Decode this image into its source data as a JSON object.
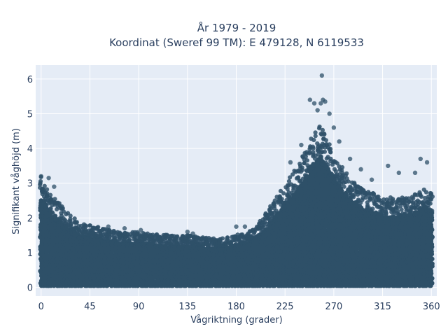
{
  "chart_data": {
    "type": "scatter",
    "title_line1": "År 1979 - 2019",
    "title_line2": "Koordinat (Sweref 99 TM): E 479128, N 6119533",
    "xlabel": "Vågriktning (grader)",
    "ylabel": "Signifikant våghöjd (m)",
    "xlim": [
      -5,
      365
    ],
    "ylim": [
      -0.25,
      6.4
    ],
    "xticks": [
      0,
      45,
      90,
      135,
      180,
      225,
      270,
      315,
      360
    ],
    "yticks": [
      0,
      1,
      2,
      3,
      4,
      5,
      6
    ],
    "colors": {
      "plot_bg": "#e5ecf6",
      "marker": "#2e5068",
      "text": "#2a3f5f"
    },
    "grid": true,
    "envelope": [
      {
        "x": 0,
        "ymax": 3.2
      },
      {
        "x": 5,
        "ymax": 2.9
      },
      {
        "x": 10,
        "ymax": 2.6
      },
      {
        "x": 15,
        "ymax": 2.5
      },
      {
        "x": 20,
        "ymax": 2.3
      },
      {
        "x": 25,
        "ymax": 2.1
      },
      {
        "x": 30,
        "ymax": 2.0
      },
      {
        "x": 35,
        "ymax": 1.9
      },
      {
        "x": 45,
        "ymax": 1.8
      },
      {
        "x": 60,
        "ymax": 1.7
      },
      {
        "x": 75,
        "ymax": 1.6
      },
      {
        "x": 90,
        "ymax": 1.6
      },
      {
        "x": 105,
        "ymax": 1.55
      },
      {
        "x": 120,
        "ymax": 1.5
      },
      {
        "x": 135,
        "ymax": 1.5
      },
      {
        "x": 150,
        "ymax": 1.45
      },
      {
        "x": 165,
        "ymax": 1.4
      },
      {
        "x": 180,
        "ymax": 1.5
      },
      {
        "x": 195,
        "ymax": 1.7
      },
      {
        "x": 205,
        "ymax": 2.0
      },
      {
        "x": 215,
        "ymax": 2.5
      },
      {
        "x": 225,
        "ymax": 3.0
      },
      {
        "x": 235,
        "ymax": 3.4
      },
      {
        "x": 245,
        "ymax": 4.0
      },
      {
        "x": 252,
        "ymax": 4.5
      },
      {
        "x": 258,
        "ymax": 4.7
      },
      {
        "x": 265,
        "ymax": 4.3
      },
      {
        "x": 272,
        "ymax": 3.8
      },
      {
        "x": 280,
        "ymax": 3.4
      },
      {
        "x": 290,
        "ymax": 3.0
      },
      {
        "x": 300,
        "ymax": 2.8
      },
      {
        "x": 315,
        "ymax": 2.6
      },
      {
        "x": 330,
        "ymax": 2.6
      },
      {
        "x": 345,
        "ymax": 2.7
      },
      {
        "x": 355,
        "ymax": 2.9
      },
      {
        "x": 360,
        "ymax": 2.8
      }
    ],
    "outliers": [
      {
        "x": 0,
        "y": 3.2
      },
      {
        "x": 7,
        "y": 3.15
      },
      {
        "x": 12,
        "y": 2.9
      },
      {
        "x": 62,
        "y": 1.75
      },
      {
        "x": 77,
        "y": 1.7
      },
      {
        "x": 92,
        "y": 1.65
      },
      {
        "x": 135,
        "y": 1.6
      },
      {
        "x": 140,
        "y": 1.55
      },
      {
        "x": 180,
        "y": 1.75
      },
      {
        "x": 188,
        "y": 1.75
      },
      {
        "x": 230,
        "y": 3.6
      },
      {
        "x": 240,
        "y": 4.1
      },
      {
        "x": 248,
        "y": 5.4
      },
      {
        "x": 252,
        "y": 5.3
      },
      {
        "x": 255,
        "y": 5.1
      },
      {
        "x": 258,
        "y": 5.3
      },
      {
        "x": 260,
        "y": 5.4
      },
      {
        "x": 262,
        "y": 5.35
      },
      {
        "x": 259,
        "y": 6.1
      },
      {
        "x": 266,
        "y": 5.0
      },
      {
        "x": 270,
        "y": 4.6
      },
      {
        "x": 275,
        "y": 4.2
      },
      {
        "x": 285,
        "y": 3.7
      },
      {
        "x": 295,
        "y": 3.4
      },
      {
        "x": 305,
        "y": 3.1
      },
      {
        "x": 320,
        "y": 3.5
      },
      {
        "x": 330,
        "y": 3.3
      },
      {
        "x": 345,
        "y": 3.3
      },
      {
        "x": 350,
        "y": 3.7
      },
      {
        "x": 356,
        "y": 3.6
      }
    ]
  }
}
